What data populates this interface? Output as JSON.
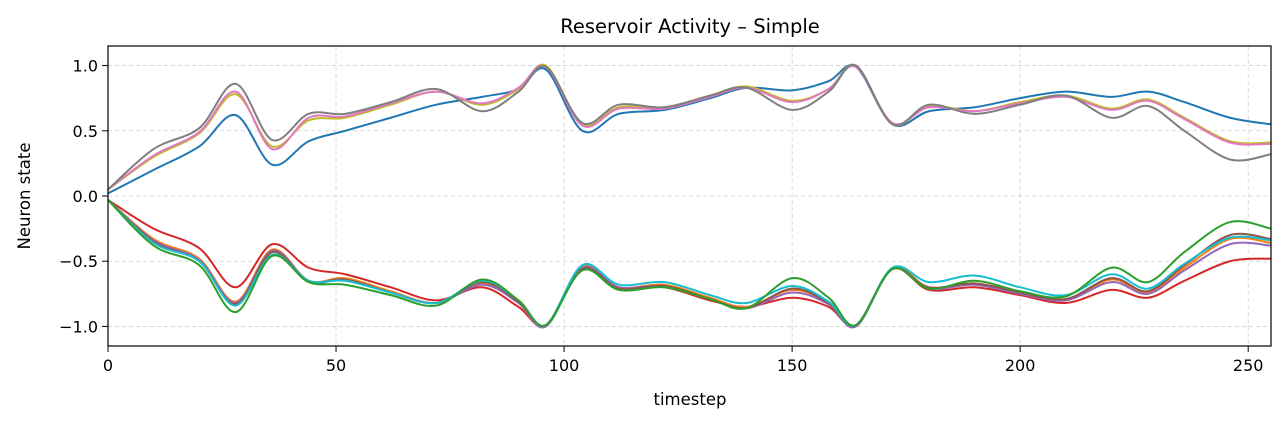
{
  "chart_data": {
    "type": "line",
    "title": "Reservoir Activity – Simple",
    "xlabel": "timestep",
    "ylabel": "Neuron state",
    "xlim": [
      0,
      255
    ],
    "ylim": [
      -1.15,
      1.15
    ],
    "xticks": [
      0,
      50,
      100,
      150,
      200,
      250
    ],
    "yticks": [
      -1.0,
      -0.5,
      0.0,
      0.5,
      1.0
    ],
    "xtick_labels": [
      "0",
      "50",
      "100",
      "150",
      "200",
      "250"
    ],
    "ytick_labels": [
      "−1.0",
      "−0.5",
      "0.0",
      "0.5",
      "1.0"
    ],
    "grid": true,
    "colors": {
      "blue": "#1f77b4",
      "orange": "#ff7f0e",
      "green": "#2ca02c",
      "red": "#d62728",
      "purple": "#9467bd",
      "brown": "#8c564b",
      "pink": "#e377c2",
      "gray": "#7f7f7f",
      "olive": "#bcbd22",
      "cyan": "#17becf"
    },
    "x": [
      0,
      10,
      20,
      28,
      36,
      44,
      52,
      62,
      72,
      82,
      90,
      96,
      104,
      112,
      122,
      132,
      140,
      150,
      158,
      164,
      172,
      180,
      190,
      200,
      210,
      220,
      228,
      236,
      246,
      255
    ],
    "series": [
      {
        "color": "#1f77b4",
        "values": [
          0.02,
          0.2,
          0.38,
          0.62,
          0.24,
          0.42,
          0.5,
          0.6,
          0.7,
          0.76,
          0.82,
          0.97,
          0.5,
          0.63,
          0.66,
          0.75,
          0.83,
          0.81,
          0.88,
          0.99,
          0.55,
          0.65,
          0.68,
          0.75,
          0.8,
          0.76,
          0.8,
          0.72,
          0.6,
          0.55
        ]
      },
      {
        "color": "#bcbd22",
        "values": [
          0.05,
          0.3,
          0.48,
          0.78,
          0.38,
          0.58,
          0.6,
          0.7,
          0.8,
          0.7,
          0.82,
          1.0,
          0.55,
          0.68,
          0.68,
          0.77,
          0.84,
          0.73,
          0.82,
          1.0,
          0.55,
          0.69,
          0.65,
          0.72,
          0.77,
          0.67,
          0.74,
          0.6,
          0.42,
          0.41
        ]
      },
      {
        "color": "#e377c2",
        "values": [
          0.05,
          0.31,
          0.49,
          0.8,
          0.36,
          0.6,
          0.61,
          0.71,
          0.8,
          0.71,
          0.83,
          0.99,
          0.54,
          0.67,
          0.67,
          0.76,
          0.83,
          0.72,
          0.82,
          0.99,
          0.56,
          0.68,
          0.65,
          0.71,
          0.76,
          0.66,
          0.73,
          0.59,
          0.41,
          0.4
        ]
      },
      {
        "color": "#7f7f7f",
        "values": [
          0.05,
          0.36,
          0.52,
          0.86,
          0.43,
          0.63,
          0.63,
          0.72,
          0.82,
          0.65,
          0.8,
          0.99,
          0.56,
          0.7,
          0.68,
          0.77,
          0.83,
          0.66,
          0.8,
          1.0,
          0.55,
          0.7,
          0.63,
          0.7,
          0.77,
          0.6,
          0.69,
          0.5,
          0.28,
          0.32
        ]
      },
      {
        "color": "#d62728",
        "values": [
          -0.03,
          -0.25,
          -0.4,
          -0.7,
          -0.37,
          -0.55,
          -0.6,
          -0.7,
          -0.8,
          -0.7,
          -0.85,
          -0.99,
          -0.55,
          -0.7,
          -0.7,
          -0.8,
          -0.85,
          -0.78,
          -0.85,
          -0.99,
          -0.56,
          -0.72,
          -0.7,
          -0.76,
          -0.82,
          -0.72,
          -0.78,
          -0.65,
          -0.5,
          -0.48
        ]
      },
      {
        "color": "#ff7f0e",
        "values": [
          -0.03,
          -0.33,
          -0.48,
          -0.81,
          -0.41,
          -0.65,
          -0.63,
          -0.73,
          -0.82,
          -0.67,
          -0.82,
          -1.0,
          -0.54,
          -0.7,
          -0.68,
          -0.78,
          -0.85,
          -0.72,
          -0.82,
          -1.0,
          -0.55,
          -0.7,
          -0.67,
          -0.74,
          -0.8,
          -0.64,
          -0.74,
          -0.55,
          -0.33,
          -0.36
        ]
      },
      {
        "color": "#9467bd",
        "values": [
          -0.03,
          -0.34,
          -0.49,
          -0.82,
          -0.42,
          -0.65,
          -0.64,
          -0.74,
          -0.82,
          -0.68,
          -0.82,
          -1.0,
          -0.55,
          -0.7,
          -0.69,
          -0.79,
          -0.86,
          -0.74,
          -0.83,
          -1.0,
          -0.56,
          -0.71,
          -0.68,
          -0.75,
          -0.8,
          -0.66,
          -0.75,
          -0.57,
          -0.37,
          -0.38
        ]
      },
      {
        "color": "#8c564b",
        "values": [
          -0.03,
          -0.35,
          -0.5,
          -0.83,
          -0.43,
          -0.66,
          -0.64,
          -0.74,
          -0.82,
          -0.66,
          -0.81,
          -0.99,
          -0.56,
          -0.71,
          -0.69,
          -0.79,
          -0.86,
          -0.71,
          -0.82,
          -0.99,
          -0.56,
          -0.7,
          -0.67,
          -0.74,
          -0.79,
          -0.63,
          -0.73,
          -0.53,
          -0.3,
          -0.33
        ]
      },
      {
        "color": "#17becf",
        "values": [
          -0.03,
          -0.36,
          -0.5,
          -0.84,
          -0.45,
          -0.65,
          -0.65,
          -0.74,
          -0.82,
          -0.65,
          -0.8,
          -0.99,
          -0.53,
          -0.68,
          -0.66,
          -0.76,
          -0.82,
          -0.69,
          -0.81,
          -0.99,
          -0.55,
          -0.66,
          -0.61,
          -0.7,
          -0.76,
          -0.6,
          -0.71,
          -0.52,
          -0.32,
          -0.34
        ]
      },
      {
        "color": "#2ca02c",
        "values": [
          -0.03,
          -0.38,
          -0.53,
          -0.89,
          -0.46,
          -0.66,
          -0.68,
          -0.76,
          -0.84,
          -0.64,
          -0.8,
          -0.99,
          -0.57,
          -0.72,
          -0.7,
          -0.79,
          -0.86,
          -0.63,
          -0.78,
          -0.99,
          -0.56,
          -0.71,
          -0.65,
          -0.73,
          -0.77,
          -0.55,
          -0.66,
          -0.43,
          -0.2,
          -0.25
        ]
      }
    ]
  }
}
